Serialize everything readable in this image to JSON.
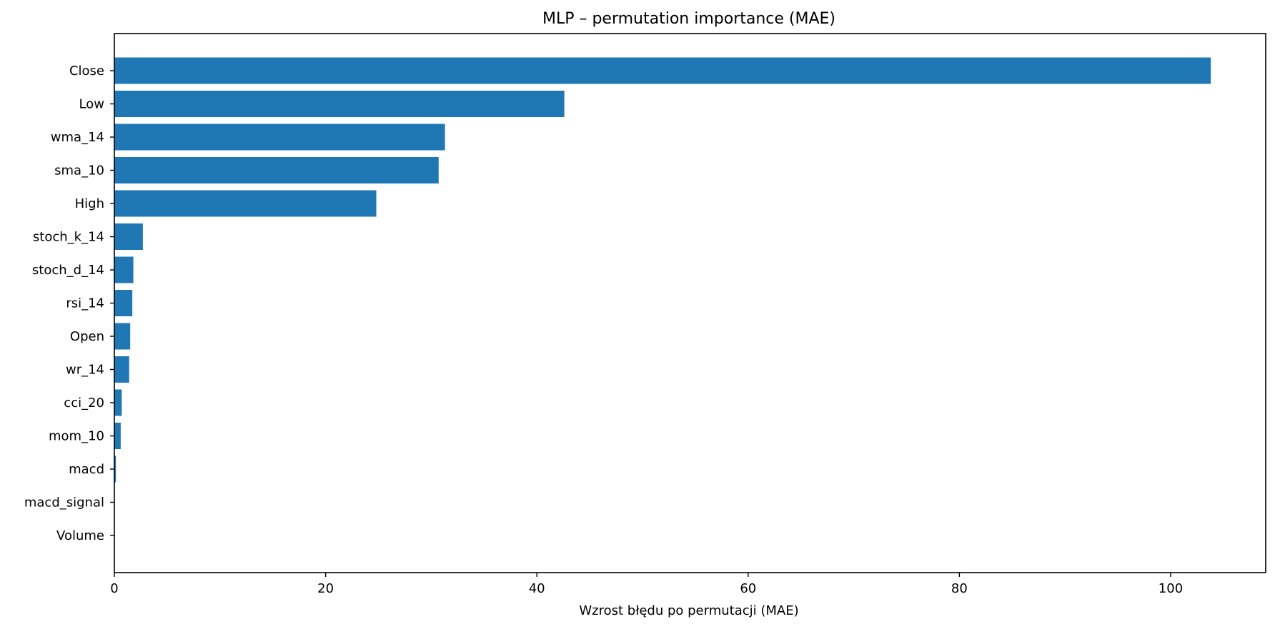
{
  "chart_data": {
    "type": "bar",
    "orientation": "horizontal",
    "title": "MLP – permutation importance (MAE)",
    "xlabel": "Wzrost błędu po permutacji (MAE)",
    "ylabel": "",
    "xlim": [
      0,
      109
    ],
    "xticks": [
      0,
      20,
      40,
      60,
      80,
      100
    ],
    "grid": false,
    "color": "#1f77b4",
    "categories": [
      "Close",
      "Low",
      "wma_14",
      "sma_10",
      "High",
      "stoch_k_14",
      "stoch_d_14",
      "rsi_14",
      "Open",
      "wr_14",
      "cci_20",
      "mom_10",
      "macd",
      "macd_signal",
      "Volume"
    ],
    "values": [
      103.8,
      42.6,
      31.3,
      30.7,
      24.8,
      2.7,
      1.8,
      1.7,
      1.5,
      1.4,
      0.7,
      0.6,
      0.15,
      0.0,
      0.0
    ]
  }
}
